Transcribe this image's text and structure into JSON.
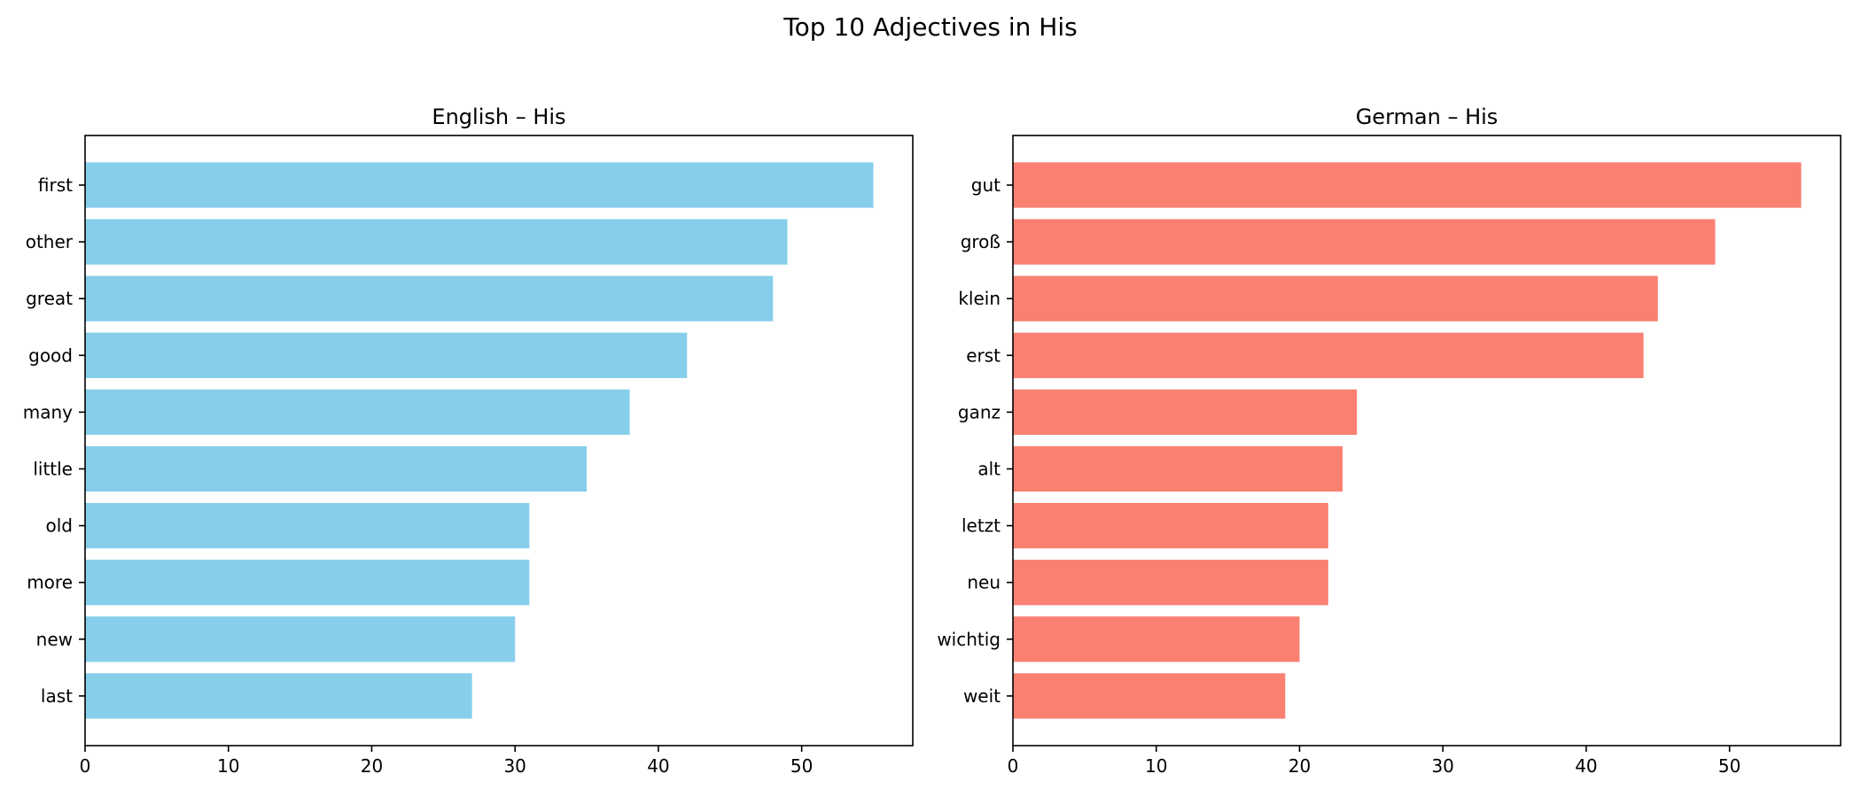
{
  "figure": {
    "title": "Top 10 Adjectives in His"
  },
  "chart_data": [
    {
      "type": "bar",
      "orientation": "horizontal",
      "title": "English – His",
      "xlabel": "",
      "ylabel": "",
      "xlim": [
        0,
        57.75
      ],
      "xticks": [
        0,
        10,
        20,
        30,
        40,
        50
      ],
      "grid": false,
      "color": "#87ceeb",
      "categories": [
        "first",
        "other",
        "great",
        "good",
        "many",
        "little",
        "old",
        "more",
        "new",
        "last"
      ],
      "values": [
        55,
        49,
        48,
        42,
        38,
        35,
        31,
        31,
        30,
        27
      ]
    },
    {
      "type": "bar",
      "orientation": "horizontal",
      "title": "German – His",
      "xlabel": "",
      "ylabel": "",
      "xlim": [
        0,
        57.75
      ],
      "xticks": [
        0,
        10,
        20,
        30,
        40,
        50
      ],
      "grid": false,
      "color": "#fa8072",
      "categories": [
        "gut",
        "groß",
        "klein",
        "erst",
        "ganz",
        "alt",
        "letzt",
        "neu",
        "wichtig",
        "weit"
      ],
      "values": [
        55,
        49,
        45,
        44,
        24,
        23,
        22,
        22,
        20,
        19
      ]
    }
  ]
}
